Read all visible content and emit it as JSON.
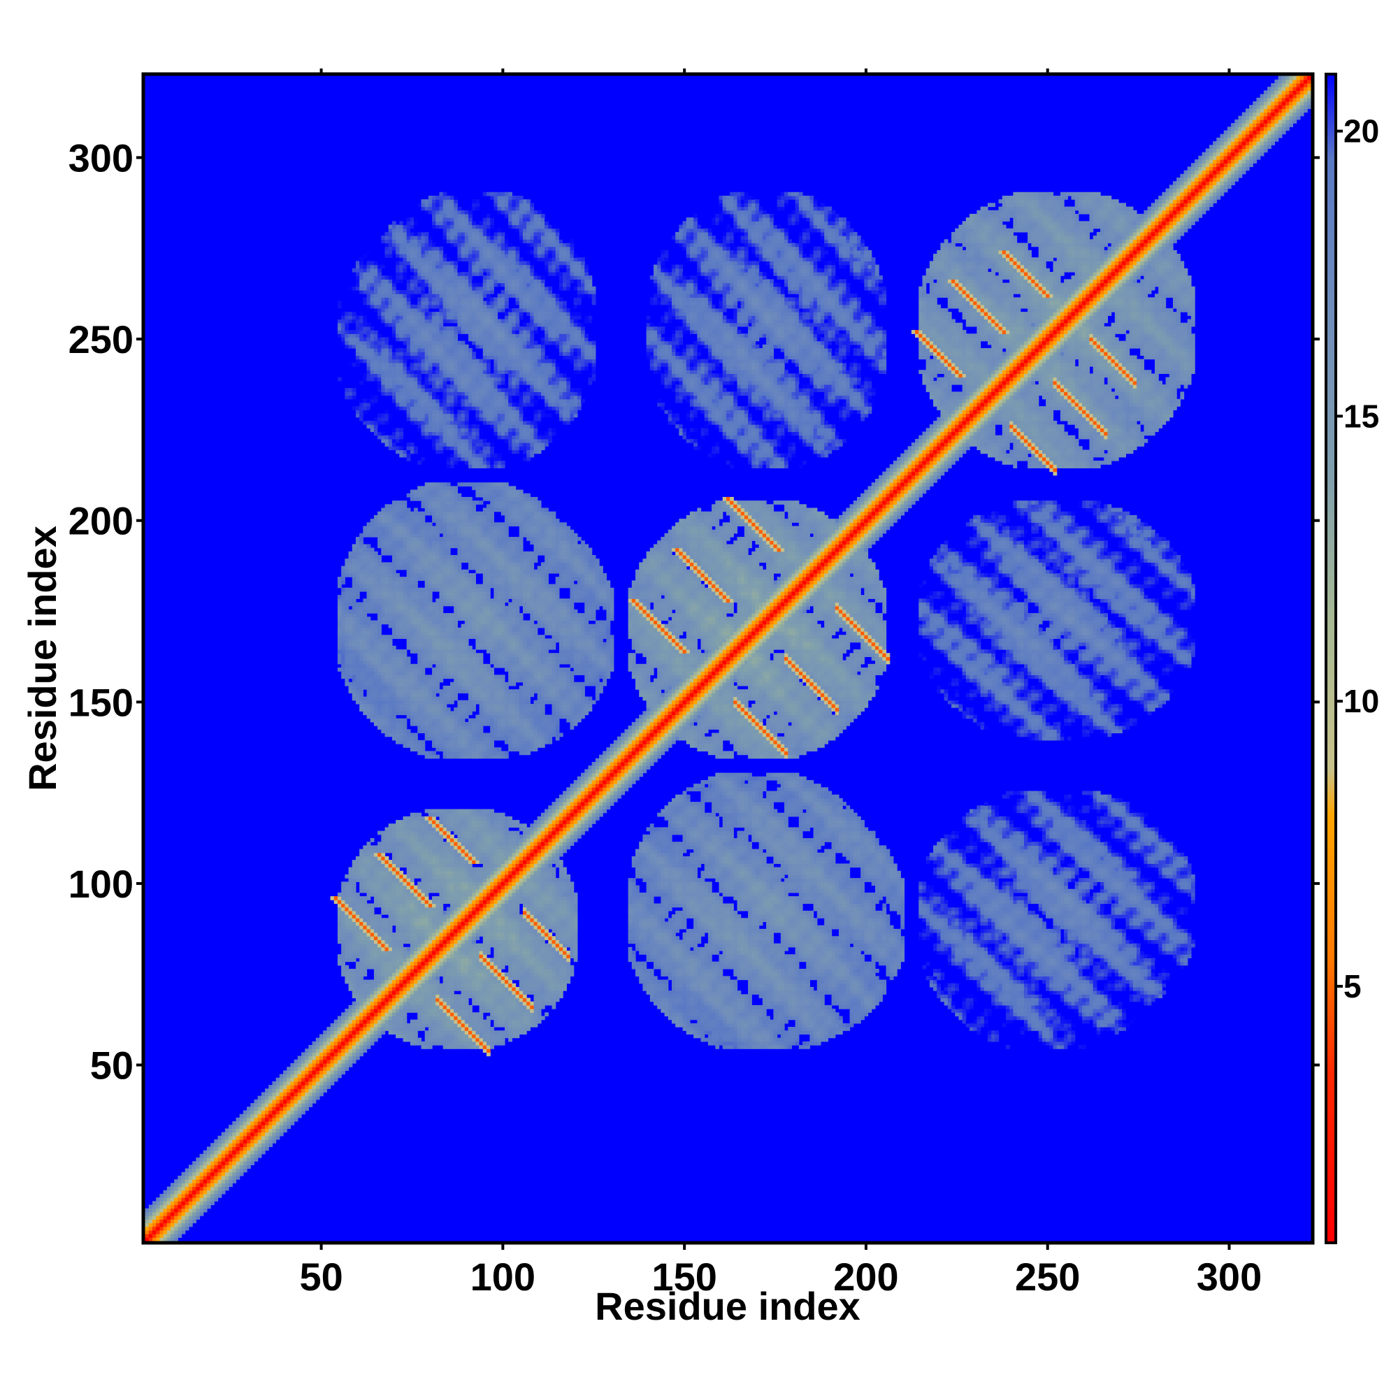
{
  "chart_data": {
    "type": "heatmap",
    "title": "",
    "xlabel": "Residue index",
    "ylabel": "Residue index",
    "xlim": [
      1,
      323
    ],
    "ylim": [
      1,
      323
    ],
    "xticks": [
      50,
      100,
      150,
      200,
      250,
      300
    ],
    "yticks": [
      50,
      100,
      150,
      200,
      250,
      300
    ],
    "symmetric": true,
    "diagonal_value": 3.8,
    "background_value": 21,
    "grid": false,
    "colorbar": {
      "position": "right",
      "min": 0.5,
      "max": 21,
      "ticks": [
        5,
        10,
        15,
        20
      ],
      "stops": [
        {
          "value": 0.5,
          "color": "#ff0000"
        },
        {
          "value": 3.5,
          "color": "#ff2a00"
        },
        {
          "value": 5.5,
          "color": "#ff7a00"
        },
        {
          "value": 8.0,
          "color": "#ffa500"
        },
        {
          "value": 8.8,
          "color": "#c9c28a"
        },
        {
          "value": 11.5,
          "color": "#a6b994"
        },
        {
          "value": 14.0,
          "color": "#7f9fae"
        },
        {
          "value": 17.0,
          "color": "#6f8cbc"
        },
        {
          "value": 19.5,
          "color": "#5a79c4"
        },
        {
          "value": 21.0,
          "color": "#0000ff"
        }
      ]
    },
    "secondary_structure_contacts": [
      {
        "type": "antiparallel",
        "i": 68,
        "j": 82,
        "length": 14
      },
      {
        "type": "antiparallel",
        "i": 80,
        "j": 94,
        "length": 14
      },
      {
        "type": "antiparallel",
        "i": 92,
        "j": 106,
        "length": 12
      },
      {
        "type": "antiparallel",
        "i": 150,
        "j": 164,
        "length": 14
      },
      {
        "type": "antiparallel",
        "i": 162,
        "j": 178,
        "length": 14
      },
      {
        "type": "antiparallel",
        "i": 176,
        "j": 192,
        "length": 14
      },
      {
        "type": "antiparallel",
        "i": 226,
        "j": 240,
        "length": 12
      },
      {
        "type": "antiparallel",
        "i": 238,
        "j": 252,
        "length": 14
      },
      {
        "type": "antiparallel",
        "i": 250,
        "j": 262,
        "length": 12
      }
    ],
    "regions": [
      {
        "i": [
          55,
          120
        ],
        "j": [
          55,
          120
        ],
        "value": 14.5
      },
      {
        "i": [
          135,
          205
        ],
        "j": [
          135,
          205
        ],
        "value": 14.5
      },
      {
        "i": [
          215,
          290
        ],
        "j": [
          215,
          290
        ],
        "value": 15
      },
      {
        "i": [
          55,
          130
        ],
        "j": [
          135,
          205
        ],
        "value": 16.5
      },
      {
        "i": [
          135,
          210
        ],
        "j": [
          55,
          125
        ],
        "value": 16.5
      },
      {
        "i": [
          60,
          125
        ],
        "j": [
          215,
          290
        ],
        "value": 18.5
      },
      {
        "i": [
          140,
          205
        ],
        "j": [
          215,
          290
        ],
        "value": 18.5
      },
      {
        "i": [
          215,
          285
        ],
        "j": [
          55,
          125
        ],
        "value": 19
      },
      {
        "i": [
          215,
          285
        ],
        "j": [
          140,
          205
        ],
        "value": 19
      }
    ]
  }
}
